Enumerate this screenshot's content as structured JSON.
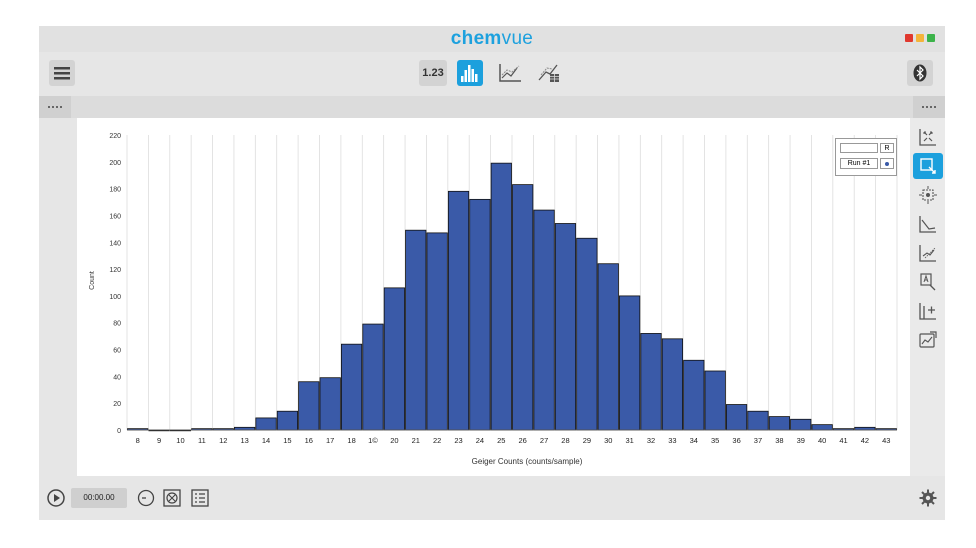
{
  "app": {
    "title_bold": "chem",
    "title_rest": "vue",
    "window_dot_colors": [
      "#e0382e",
      "#f4b43a",
      "#3cb34a"
    ]
  },
  "toolbar": {
    "numeric_label": "1.23",
    "icons": [
      "menu-icon",
      "histogram-icon",
      "line-graph-icon",
      "graph-table-icon",
      "bluetooth-icon"
    ]
  },
  "legend": {
    "r_label": "R",
    "run_label": "Run #1",
    "swatch_color": "#3a5aa8"
  },
  "bottombar": {
    "timer": "00:00.00",
    "icons": [
      "play-icon",
      "clock-icon",
      "target-icon",
      "list-icon",
      "gear-icon"
    ]
  },
  "tools": {
    "icons": [
      "zoom-fit-icon",
      "select-icon",
      "center-icon",
      "curve-fit-icon",
      "tangent-icon",
      "annotation-icon",
      "add-axis-icon",
      "export-graph-icon"
    ],
    "active_index": 1
  },
  "colors": {
    "accent": "#1ca0dd",
    "bar_fill": "#3a5aa8",
    "bar_stroke": "#111111"
  },
  "chart_data": {
    "type": "bar",
    "title": "",
    "xlabel": "Geiger Counts (counts/sample)",
    "ylabel": "Count",
    "categories": [
      "8",
      "9",
      "10",
      "11",
      "12",
      "13",
      "14",
      "15",
      "16",
      "17",
      "18",
      "19",
      "20",
      "21",
      "22",
      "23",
      "24",
      "25",
      "26",
      "27",
      "28",
      "29",
      "30",
      "31",
      "32",
      "33",
      "34",
      "35",
      "36",
      "37",
      "38",
      "39",
      "40",
      "41",
      "42",
      "43"
    ],
    "x_tick_labels": [
      "8",
      "9",
      "10",
      "11",
      "12",
      "13",
      "14",
      "15",
      "16",
      "17",
      "18",
      "1©",
      "20",
      "21",
      "22",
      "23",
      "24",
      "25",
      "26",
      "27",
      "28",
      "29",
      "30",
      "31",
      "32",
      "33",
      "34",
      "35",
      "36",
      "37",
      "38",
      "39",
      "40",
      "41",
      "42",
      "43"
    ],
    "values": [
      1,
      0,
      0,
      1,
      1,
      2,
      9,
      14,
      36,
      39,
      64,
      79,
      106,
      149,
      147,
      178,
      172,
      199,
      183,
      164,
      154,
      143,
      124,
      100,
      72,
      68,
      52,
      44,
      19,
      14,
      10,
      8,
      4,
      1,
      2,
      1
    ],
    "ylim": [
      0,
      220
    ],
    "yticks": [
      0,
      20,
      40,
      60,
      80,
      100,
      120,
      140,
      160,
      180,
      200,
      220
    ],
    "grid": "vertical",
    "legend": "top-right"
  }
}
